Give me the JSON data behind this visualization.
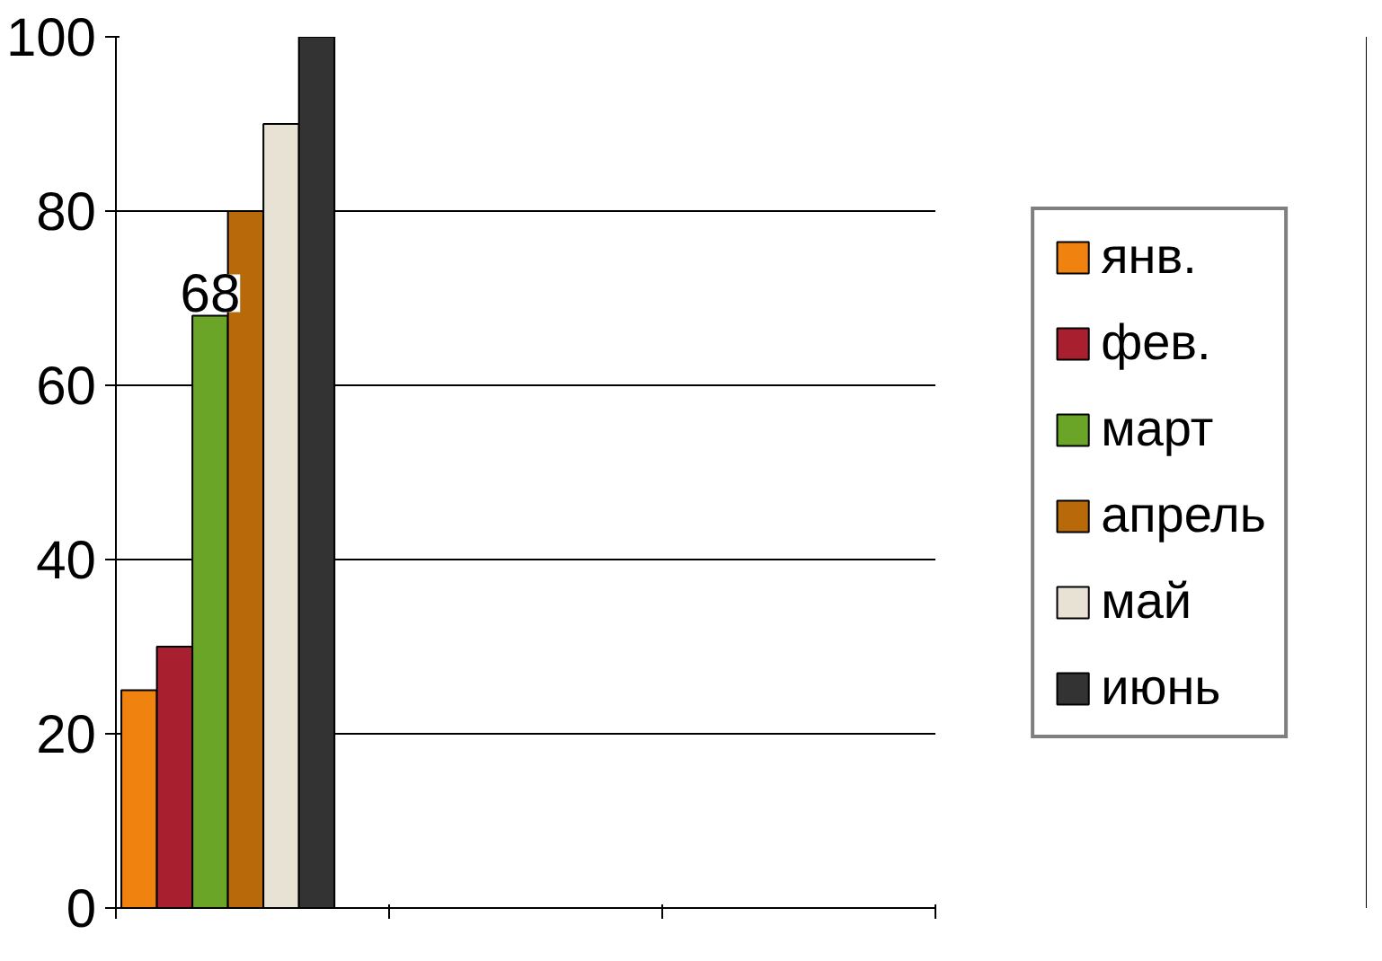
{
  "chart_data": {
    "type": "bar",
    "categories": [
      null,
      null,
      null
    ],
    "series": [
      {
        "name": "янв.",
        "color": "#f0820f",
        "values": [
          25,
          null,
          null
        ]
      },
      {
        "name": "фев.",
        "color": "#a8202f",
        "values": [
          30,
          null,
          null
        ]
      },
      {
        "name": "март",
        "color": "#6aa527",
        "values": [
          68,
          null,
          null
        ],
        "value_labels": [
          "68",
          null,
          null
        ]
      },
      {
        "name": "апрель",
        "color": "#b86a0a",
        "values": [
          80,
          null,
          null
        ]
      },
      {
        "name": "май",
        "color": "#e8e2d4",
        "values": [
          90,
          null,
          null
        ]
      },
      {
        "name": "июнь",
        "color": "#333333",
        "values": [
          100,
          null,
          null
        ]
      }
    ],
    "ylim": [
      0,
      100
    ],
    "yticks": [
      0,
      20,
      40,
      60,
      80,
      100
    ],
    "grid": "y",
    "legend": "right",
    "tick_labels": "y"
  }
}
